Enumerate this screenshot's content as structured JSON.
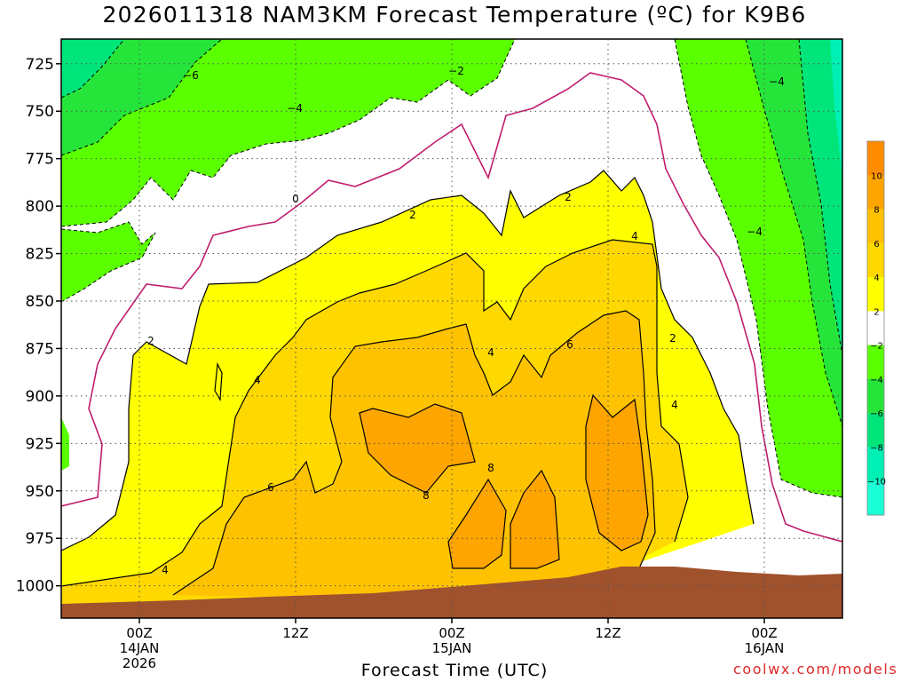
{
  "title": "2026011318 NAM3KM Forecast Temperature (ºC) for K9B6",
  "credit": "coolwx.com/models",
  "chart_data": {
    "type": "heatmap",
    "title": "2026011318 NAM3KM Forecast Temperature (ºC) for K9B6",
    "xlabel": "Forecast Time (UTC)",
    "ylabel": "",
    "y_axis": {
      "unit": "hPa",
      "ticks": [
        725,
        750,
        775,
        800,
        825,
        850,
        875,
        900,
        925,
        950,
        975,
        1000
      ],
      "range": [
        712,
        1017
      ],
      "inverted": true
    },
    "x_axis": {
      "ticks": [
        {
          "label": "00Z",
          "sub1": "14JAN",
          "sub2": "2026",
          "hours_from_init": 6
        },
        {
          "label": "12Z",
          "sub1": "",
          "sub2": "",
          "hours_from_init": 18
        },
        {
          "label": "00Z",
          "sub1": "15JAN",
          "sub2": "",
          "hours_from_init": 30
        },
        {
          "label": "12Z",
          "sub1": "",
          "sub2": "",
          "hours_from_init": 42
        },
        {
          "label": "00Z",
          "sub1": "16JAN",
          "sub2": "",
          "hours_from_init": 54
        }
      ],
      "range_hours_from_init": [
        0,
        60
      ]
    },
    "grid": true,
    "color_scale": {
      "labels": [
        "10",
        "8",
        "6",
        "4",
        "2",
        "−2",
        "−4",
        "−6",
        "−8",
        "−10"
      ],
      "colors": [
        "#ff8c00",
        "#ffa500",
        "#ffc200",
        "#ffd800",
        "#ffff00",
        "#ffffff",
        "#5aff00",
        "#25e53a",
        "#00e57a",
        "#00efb5",
        "#1affd5"
      ],
      "placement": "right"
    },
    "contour_labels": [
      "−6",
      "−4",
      "−2",
      "0",
      "2",
      "4",
      "6",
      "8",
      "−4",
      "−4"
    ],
    "ground_color": "#a0522d"
  },
  "colors": {
    "freezing_contour": "#c01c6e",
    "credit_text": "#e0282a"
  }
}
